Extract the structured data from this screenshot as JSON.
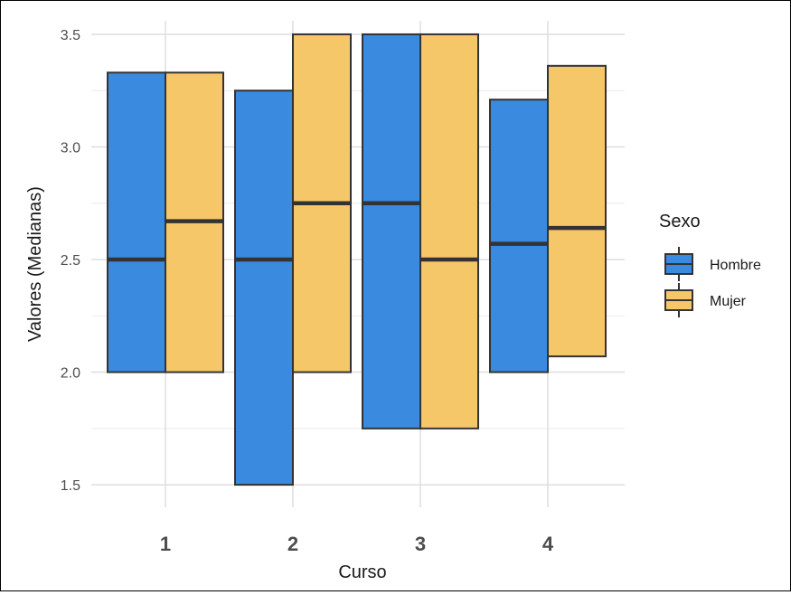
{
  "chart_data": {
    "type": "boxplot",
    "xlabel": "Curso",
    "ylabel": "Valores (Medianas)",
    "categories": [
      "1",
      "2",
      "3",
      "4"
    ],
    "ylim": [
      1.4,
      3.56
    ],
    "yticks": [
      1.5,
      2.0,
      2.5,
      3.0,
      3.5
    ],
    "ytick_labels": [
      "1.5",
      "2.0",
      "2.5",
      "3.0",
      "3.5"
    ],
    "grid": true,
    "legend": {
      "title": "Sexo",
      "position": "right",
      "items": [
        "Hombre",
        "Mujer"
      ]
    },
    "series": [
      {
        "name": "Hombre",
        "color": "#3A8AE0",
        "boxes": [
          {
            "category": "1",
            "lower": 2.0,
            "median": 2.5,
            "upper": 3.33
          },
          {
            "category": "2",
            "lower": 1.5,
            "median": 2.5,
            "upper": 3.25
          },
          {
            "category": "3",
            "lower": 1.75,
            "median": 2.75,
            "upper": 3.5
          },
          {
            "category": "4",
            "lower": 2.0,
            "median": 2.57,
            "upper": 3.21
          }
        ]
      },
      {
        "name": "Mujer",
        "color": "#F6C768",
        "boxes": [
          {
            "category": "1",
            "lower": 2.0,
            "median": 2.67,
            "upper": 3.33
          },
          {
            "category": "2",
            "lower": 2.0,
            "median": 2.75,
            "upper": 3.5
          },
          {
            "category": "3",
            "lower": 1.75,
            "median": 2.5,
            "upper": 3.5
          },
          {
            "category": "4",
            "lower": 2.07,
            "median": 2.64,
            "upper": 3.36
          }
        ]
      }
    ]
  }
}
